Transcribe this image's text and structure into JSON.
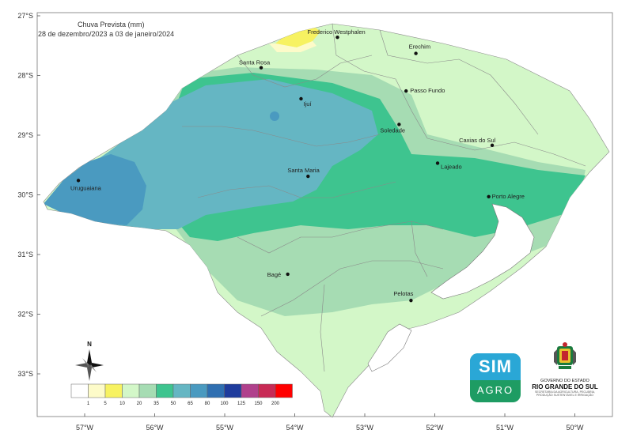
{
  "title": "Chuva Prevista (mm)",
  "subtitle": "28 de dezembro/2023 a 03 de janeiro/2024",
  "lat_ticks": [
    "27°S",
    "28°S",
    "29°S",
    "30°S",
    "31°S",
    "32°S",
    "33°S"
  ],
  "lon_ticks": [
    "57°W",
    "56°W",
    "55°W",
    "54°W",
    "53°W",
    "52°W",
    "51°W",
    "50°W"
  ],
  "cities": [
    {
      "name": "Frederico Westphalen",
      "lat": -27.36,
      "lon": -53.39
    },
    {
      "name": "Erechim",
      "lat": -27.63,
      "lon": -52.27
    },
    {
      "name": "Santa Rosa",
      "lat": -27.87,
      "lon": -54.48
    },
    {
      "name": "Passo Fundo",
      "lat": -28.26,
      "lon": -52.41
    },
    {
      "name": "Ijuí",
      "lat": -28.39,
      "lon": -53.91
    },
    {
      "name": "Soledade",
      "lat": -28.82,
      "lon": -52.51
    },
    {
      "name": "Caxias do Sul",
      "lat": -29.17,
      "lon": -51.18
    },
    {
      "name": "Lajeado",
      "lat": -29.47,
      "lon": -51.96
    },
    {
      "name": "Santa Maria",
      "lat": -29.69,
      "lon": -53.81
    },
    {
      "name": "Uruguaiana",
      "lat": -29.76,
      "lon": -57.09
    },
    {
      "name": "Porto Alegre",
      "lat": -30.03,
      "lon": -51.23
    },
    {
      "name": "Bagé",
      "lat": -31.33,
      "lon": -54.1
    },
    {
      "name": "Pelotas",
      "lat": -31.77,
      "lon": -52.34
    }
  ],
  "legend": {
    "values": [
      "1",
      "5",
      "10",
      "20",
      "35",
      "50",
      "65",
      "80",
      "100",
      "125",
      "150",
      "200"
    ],
    "colors": [
      "#ffffff",
      "#fdfbc9",
      "#f7f261",
      "#d3f7c8",
      "#a6dcb3",
      "#3ec48f",
      "#65b6c3",
      "#4a9ac0",
      "#2f6fb1",
      "#1f3c9d",
      "#b0418c",
      "#c82a55",
      "#ff0000"
    ]
  },
  "north_label": "N",
  "logo": {
    "top": "SIM",
    "bottom": "AGRO"
  },
  "government": {
    "line1": "GOVERNO DO ESTADO",
    "line2": "RIO GRANDE DO SUL",
    "line3": "SECRETARIA DA AGRICULTURA, PECUÁRIA, PRODUÇÃO SUSTENTÁVEL E IRRIGAÇÃO"
  }
}
